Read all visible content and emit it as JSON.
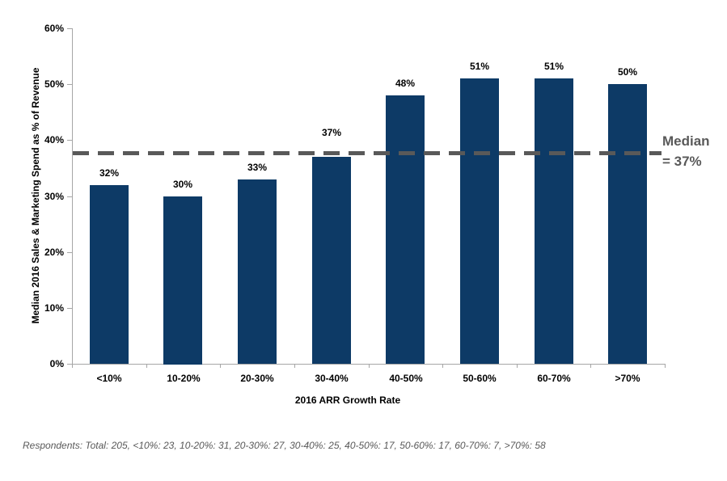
{
  "chart_data": {
    "type": "bar",
    "categories": [
      "<10%",
      "10-20%",
      "20-30%",
      "30-40%",
      "40-50%",
      "50-60%",
      "60-70%",
      ">70%"
    ],
    "values": [
      32,
      30,
      33,
      37,
      48,
      51,
      51,
      50
    ],
    "bar_labels": [
      "32%",
      "30%",
      "33%",
      "37%",
      "48%",
      "51%",
      "51%",
      "50%"
    ],
    "xlabel": "2016 ARR Growth Rate",
    "ylabel": "Median 2016 Sales & Marketing Spend as % of Revenue",
    "ylim": [
      0,
      60
    ],
    "y_tick_step": 10,
    "y_tick_labels": [
      "0%",
      "10%",
      "20%",
      "30%",
      "40%",
      "50%",
      "60%"
    ],
    "grid": false,
    "legend": "none",
    "bar_color": "#0d3a66",
    "axis_color": "#a6a6a6",
    "median_line": {
      "value": 37,
      "line_position": 37.7,
      "style": "dashed",
      "color": "#595959",
      "label_line1": "Median",
      "label_line2": "= 37%"
    }
  },
  "footnote": "Respondents: Total: 205, <10%: 23, 10-20%: 31, 20-30%: 27, 30-40%: 25, 40-50%: 17, 50-60%: 17, 60-70%: 7, >70%: 58"
}
